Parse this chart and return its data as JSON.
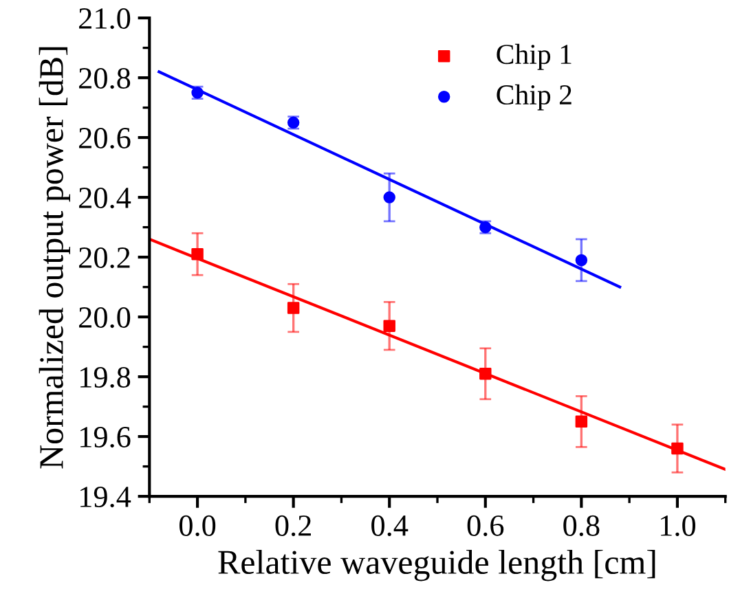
{
  "chart_data": {
    "type": "scatter",
    "xlabel": "Relative waveguide length [cm]",
    "ylabel": "Normalized output power [dB]",
    "xlim": [
      -0.1,
      1.1
    ],
    "ylim": [
      19.4,
      21.0
    ],
    "xticks": [
      {
        "value": 0,
        "label": "0.0"
      },
      0.2,
      0.4,
      0.6,
      0.8,
      {
        "value": 1,
        "label": "1.0"
      }
    ],
    "yticks": [
      19.4,
      19.6,
      19.8,
      {
        "value": 20,
        "label": "20.0"
      },
      20.2,
      20.4,
      20.6,
      20.8,
      {
        "value": 21,
        "label": "21.0"
      }
    ],
    "grid": false,
    "legend": "top right",
    "series": [
      {
        "name": "Chip 1",
        "color": "#ff0000",
        "marker": "square",
        "x": [
          0,
          0.2,
          0.4,
          0.6,
          0.8,
          1.0
        ],
        "values": [
          20.21,
          20.03,
          19.97,
          19.81,
          19.65,
          19.56
        ],
        "errors": [
          0.07,
          0.08,
          0.08,
          0.085,
          0.085,
          0.08
        ]
      },
      {
        "name": "Chip 2",
        "color": "#0000ff",
        "marker": "circle",
        "x": [
          0,
          0.2,
          0.4,
          0.6,
          0.8
        ],
        "values": [
          20.75,
          20.65,
          20.4,
          20.3,
          20.19
        ],
        "errors": [
          0.02,
          0.02,
          0.08,
          0.02,
          0.07
        ]
      },
      {
        "type": "line",
        "color": "#ff0000",
        "x": [
          -0.1,
          1.1
        ],
        "values": [
          20.26,
          19.49
        ]
      },
      {
        "type": "line",
        "color": "#0000ff",
        "x": [
          -0.08,
          0.88
        ],
        "values": [
          20.82,
          20.1
        ]
      }
    ]
  }
}
